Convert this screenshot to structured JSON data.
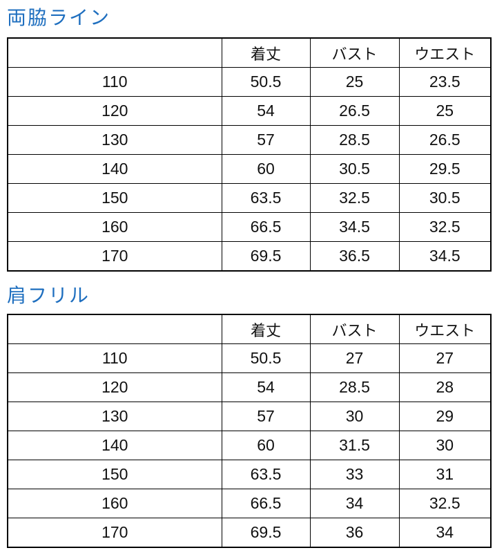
{
  "tables": [
    {
      "title": "両脇ライン",
      "headers": [
        "",
        "着丈",
        "バスト",
        "ウエスト"
      ],
      "rows": [
        [
          "110",
          "50.5",
          "25",
          "23.5"
        ],
        [
          "120",
          "54",
          "26.5",
          "25"
        ],
        [
          "130",
          "57",
          "28.5",
          "26.5"
        ],
        [
          "140",
          "60",
          "30.5",
          "29.5"
        ],
        [
          "150",
          "63.5",
          "32.5",
          "30.5"
        ],
        [
          "160",
          "66.5",
          "34.5",
          "32.5"
        ],
        [
          "170",
          "69.5",
          "36.5",
          "34.5"
        ]
      ]
    },
    {
      "title": "肩フリル",
      "headers": [
        "",
        "着丈",
        "バスト",
        "ウエスト"
      ],
      "rows": [
        [
          "110",
          "50.5",
          "27",
          "27"
        ],
        [
          "120",
          "54",
          "28.5",
          "28"
        ],
        [
          "130",
          "57",
          "30",
          "29"
        ],
        [
          "140",
          "60",
          "31.5",
          "30"
        ],
        [
          "150",
          "63.5",
          "33",
          "31"
        ],
        [
          "160",
          "66.5",
          "34",
          "32.5"
        ],
        [
          "170",
          "69.5",
          "36",
          "34"
        ]
      ]
    }
  ],
  "colors": {
    "title": "#1f6fbf",
    "border": "#000000"
  }
}
